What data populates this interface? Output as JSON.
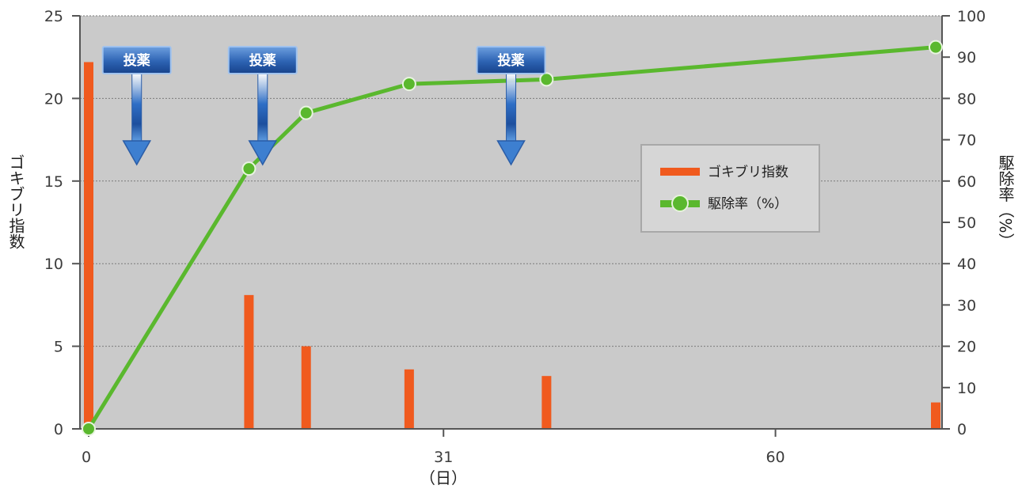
{
  "chart_data": {
    "type": "bar+line",
    "x_unit_label": "（日）",
    "x_ticks": [
      0,
      31,
      60
    ],
    "xlim": [
      0,
      74
    ],
    "left_axis": {
      "label": "ゴキブリ指数",
      "ylim": [
        0,
        25
      ],
      "ticks": [
        0,
        5,
        10,
        15,
        20,
        25
      ]
    },
    "right_axis": {
      "label": "駆除率（%）",
      "ylim": [
        0,
        100
      ],
      "ticks": [
        0,
        10,
        20,
        30,
        40,
        50,
        60,
        70,
        80,
        90,
        100
      ]
    },
    "series": [
      {
        "name": "ゴキブリ指数",
        "kind": "bar",
        "axis": "left",
        "color": "#f05a1e",
        "points": [
          {
            "x": 0,
            "y": 22.2
          },
          {
            "x": 14,
            "y": 8.1
          },
          {
            "x": 19,
            "y": 5.0
          },
          {
            "x": 28,
            "y": 3.6
          },
          {
            "x": 40,
            "y": 3.2
          },
          {
            "x": 74,
            "y": 1.6
          }
        ]
      },
      {
        "name": "駆除率（%）",
        "kind": "line",
        "axis": "right",
        "color": "#5ab82e",
        "points": [
          {
            "x": 0,
            "y": 0
          },
          {
            "x": 14,
            "y": 63
          },
          {
            "x": 19,
            "y": 76.5
          },
          {
            "x": 28,
            "y": 83.5
          },
          {
            "x": 40,
            "y": 84.6
          },
          {
            "x": 74,
            "y": 92.4
          }
        ]
      }
    ],
    "annotations": [
      {
        "text": "投薬",
        "x": 4.2
      },
      {
        "text": "投薬",
        "x": 15.2
      },
      {
        "text": "投薬",
        "x": 36.9
      }
    ],
    "grid": true,
    "legend": {
      "position": "right",
      "entries": [
        "ゴキブリ指数",
        "駆除率（%）"
      ]
    },
    "plot_background": "#cacaca"
  }
}
